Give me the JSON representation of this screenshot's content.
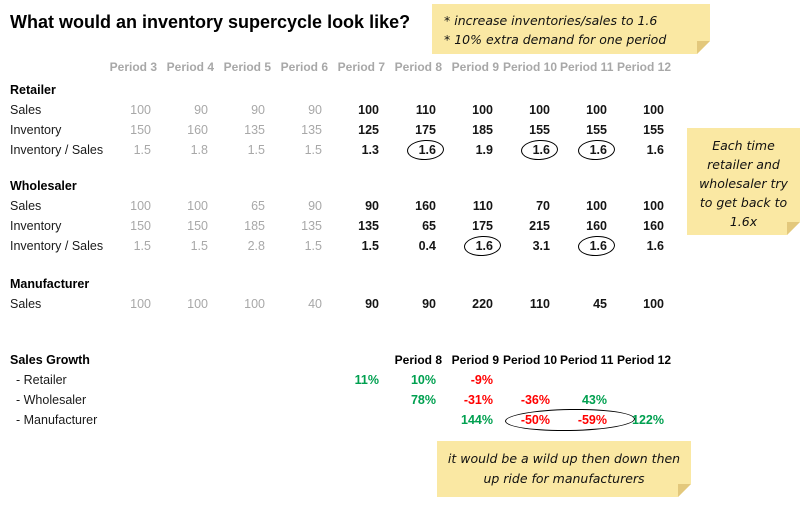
{
  "title": "What would an inventory supercycle look like?",
  "table": {
    "periods": [
      "Period 3",
      "Period 4",
      "Period 5",
      "Period 6",
      "Period 7",
      "Period 8",
      "Period 9",
      "Period 10",
      "Period 11",
      "Period 12"
    ],
    "gray_columns": 4,
    "sections": [
      {
        "title": "Retailer",
        "rows": [
          {
            "label": "Sales",
            "values": [
              "100",
              "90",
              "90",
              "90",
              "100",
              "110",
              "100",
              "100",
              "100",
              "100"
            ],
            "circled": []
          },
          {
            "label": "Inventory",
            "values": [
              "150",
              "160",
              "135",
              "135",
              "125",
              "175",
              "185",
              "155",
              "155",
              "155"
            ],
            "circled": []
          },
          {
            "label": "Inventory / Sales",
            "values": [
              "1.5",
              "1.8",
              "1.5",
              "1.5",
              "1.3",
              "1.6",
              "1.9",
              "1.6",
              "1.6",
              "1.6"
            ],
            "circled": [
              5,
              7,
              8
            ]
          }
        ]
      },
      {
        "title": "Wholesaler",
        "rows": [
          {
            "label": "Sales",
            "values": [
              "100",
              "100",
              "65",
              "90",
              "90",
              "160",
              "110",
              "70",
              "100",
              "100"
            ],
            "circled": []
          },
          {
            "label": "Inventory",
            "values": [
              "150",
              "150",
              "185",
              "135",
              "135",
              "65",
              "175",
              "215",
              "160",
              "160"
            ],
            "circled": []
          },
          {
            "label": "Inventory / Sales",
            "values": [
              "1.5",
              "1.5",
              "2.8",
              "1.5",
              "1.5",
              "0.4",
              "1.6",
              "3.1",
              "1.6",
              "1.6"
            ],
            "circled": [
              6,
              8
            ]
          }
        ]
      },
      {
        "title": "Manufacturer",
        "rows": [
          {
            "label": "Sales",
            "values": [
              "100",
              "100",
              "100",
              "40",
              "90",
              "90",
              "220",
              "110",
              "45",
              "100"
            ],
            "circled": []
          }
        ]
      }
    ]
  },
  "growth": {
    "title": "Sales Growth",
    "header_start": 5,
    "header_labels": [
      "Period 8",
      "Period 9",
      "Period 10",
      "Period 11",
      "Period 12"
    ],
    "rows": [
      {
        "label": "- Retailer",
        "cells": [
          {
            "col": 4,
            "text": "11%",
            "color": "green"
          },
          {
            "col": 5,
            "text": "10%",
            "color": "green"
          },
          {
            "col": 6,
            "text": "-9%",
            "color": "red"
          }
        ]
      },
      {
        "label": "- Wholesaler",
        "cells": [
          {
            "col": 5,
            "text": "78%",
            "color": "green"
          },
          {
            "col": 6,
            "text": "-31%",
            "color": "red"
          },
          {
            "col": 7,
            "text": "-36%",
            "color": "red"
          },
          {
            "col": 8,
            "text": "43%",
            "color": "green"
          }
        ]
      },
      {
        "label": "- Manufacturer",
        "cells": [
          {
            "col": 6,
            "text": "144%",
            "color": "green"
          },
          {
            "col": 7,
            "text": "-50%",
            "color": "red",
            "circle": "wide"
          },
          {
            "col": 8,
            "text": "-59%",
            "color": "red"
          },
          {
            "col": 9,
            "text": "122%",
            "color": "green"
          }
        ]
      }
    ]
  },
  "notes": {
    "top": {
      "lines": [
        "* increase inventories/sales to 1.6",
        "* 10% extra demand for one period"
      ]
    },
    "side": {
      "text": "Each time retailer and wholesaler try to get back to 1.6x"
    },
    "bottom": {
      "text": "it would be a wild up then down then up ride for manufacturers"
    }
  },
  "colors": {
    "gray": "#A8A8A8",
    "green": "#00A050",
    "red": "#FF0000",
    "note_bg": "#FAE8A3",
    "ink": "#1A1A1A"
  }
}
